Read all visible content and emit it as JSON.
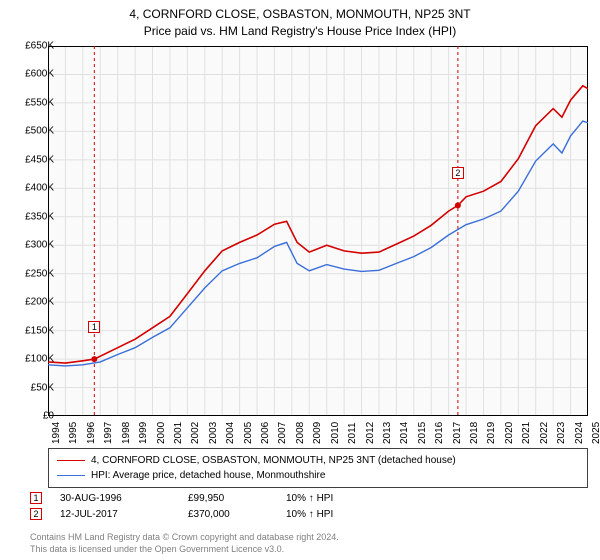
{
  "title": {
    "line1": "4, CORNFORD CLOSE, OSBASTON, MONMOUTH, NP25 3NT",
    "line2": "Price paid vs. HM Land Registry's House Price Index (HPI)"
  },
  "chart": {
    "type": "line",
    "background_color": "#fafafa",
    "grid_color": "#e0e0e0",
    "axis_color": "#000000",
    "xlim": [
      1994,
      2025
    ],
    "ylim": [
      0,
      650000
    ],
    "ytick_step": 50000,
    "y_prefix": "£",
    "y_suffix": "K",
    "x_years": [
      1994,
      1995,
      1996,
      1997,
      1998,
      1999,
      2000,
      2001,
      2002,
      2003,
      2004,
      2005,
      2006,
      2007,
      2008,
      2009,
      2010,
      2011,
      2012,
      2013,
      2014,
      2015,
      2016,
      2017,
      2018,
      2019,
      2020,
      2021,
      2022,
      2023,
      2024,
      2025
    ],
    "series": [
      {
        "name": "property",
        "label": "4, CORNFORD CLOSE, OSBASTON, MONMOUTH, NP25 3NT (detached house)",
        "color": "#d40000",
        "line_width": 1.6,
        "data": [
          [
            1994,
            95000
          ],
          [
            1995,
            93000
          ],
          [
            1996,
            97000
          ],
          [
            1996.66,
            99950
          ],
          [
            1998,
            120000
          ],
          [
            1999,
            135000
          ],
          [
            2000,
            155000
          ],
          [
            2001,
            175000
          ],
          [
            2002,
            215000
          ],
          [
            2003,
            255000
          ],
          [
            2004,
            290000
          ],
          [
            2005,
            305000
          ],
          [
            2006,
            318000
          ],
          [
            2007,
            337000
          ],
          [
            2007.7,
            342000
          ],
          [
            2008.3,
            305000
          ],
          [
            2009,
            288000
          ],
          [
            2010,
            300000
          ],
          [
            2011,
            290000
          ],
          [
            2012,
            286000
          ],
          [
            2013,
            288000
          ],
          [
            2014,
            302000
          ],
          [
            2015,
            316000
          ],
          [
            2016,
            335000
          ],
          [
            2017,
            360000
          ],
          [
            2017.53,
            370000
          ],
          [
            2018,
            385000
          ],
          [
            2019,
            395000
          ],
          [
            2020,
            412000
          ],
          [
            2021,
            452000
          ],
          [
            2022,
            510000
          ],
          [
            2023,
            540000
          ],
          [
            2023.5,
            525000
          ],
          [
            2024,
            555000
          ],
          [
            2024.7,
            580000
          ],
          [
            2025,
            575000
          ]
        ]
      },
      {
        "name": "hpi",
        "label": "HPI: Average price, detached house, Monmouthshire",
        "color": "#3a6fd8",
        "line_width": 1.4,
        "data": [
          [
            1994,
            90000
          ],
          [
            1995,
            88000
          ],
          [
            1996,
            90000
          ],
          [
            1997,
            95000
          ],
          [
            1998,
            108000
          ],
          [
            1999,
            120000
          ],
          [
            2000,
            138000
          ],
          [
            2001,
            155000
          ],
          [
            2002,
            190000
          ],
          [
            2003,
            225000
          ],
          [
            2004,
            255000
          ],
          [
            2005,
            268000
          ],
          [
            2006,
            278000
          ],
          [
            2007,
            298000
          ],
          [
            2007.7,
            305000
          ],
          [
            2008.3,
            268000
          ],
          [
            2009,
            255000
          ],
          [
            2010,
            266000
          ],
          [
            2011,
            258000
          ],
          [
            2012,
            254000
          ],
          [
            2013,
            256000
          ],
          [
            2014,
            268000
          ],
          [
            2015,
            280000
          ],
          [
            2016,
            296000
          ],
          [
            2017,
            318000
          ],
          [
            2018,
            336000
          ],
          [
            2019,
            346000
          ],
          [
            2020,
            360000
          ],
          [
            2021,
            395000
          ],
          [
            2022,
            448000
          ],
          [
            2023,
            478000
          ],
          [
            2023.5,
            462000
          ],
          [
            2024,
            492000
          ],
          [
            2024.7,
            518000
          ],
          [
            2025,
            515000
          ]
        ]
      }
    ],
    "markers": [
      {
        "id": "1",
        "x": 1996.66,
        "y": 99950,
        "color": "#d40000",
        "label_y_offset": -38
      },
      {
        "id": "2",
        "x": 2017.53,
        "y": 370000,
        "color": "#d40000",
        "label_y_offset": -38
      }
    ],
    "marker_line_color": "#d40000",
    "marker_dot_radius": 3
  },
  "legend": {
    "items": [
      {
        "series": "property"
      },
      {
        "series": "hpi"
      }
    ]
  },
  "trades": [
    {
      "marker_id": "1",
      "date": "30-AUG-1996",
      "price": "£99,950",
      "pct": "10% ↑ HPI",
      "color": "#d40000"
    },
    {
      "marker_id": "2",
      "date": "12-JUL-2017",
      "price": "£370,000",
      "pct": "10% ↑ HPI",
      "color": "#d40000"
    }
  ],
  "footnote": {
    "line1": "Contains HM Land Registry data © Crown copyright and database right 2024.",
    "line2": "This data is licensed under the Open Government Licence v3.0."
  },
  "fonts": {
    "title_fontsize": 12,
    "tick_fontsize": 10,
    "legend_fontsize": 10,
    "footnote_fontsize": 9,
    "footnote_color": "#808080"
  }
}
